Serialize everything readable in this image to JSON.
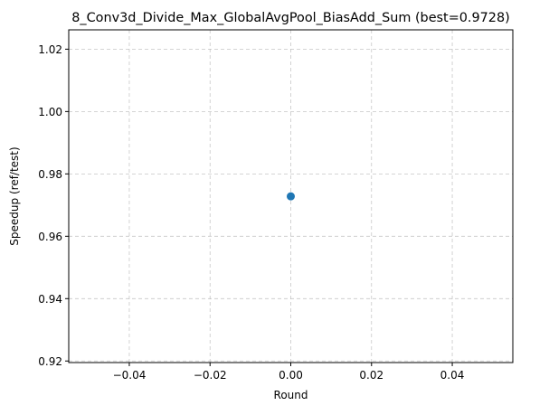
{
  "chart_data": {
    "type": "scatter",
    "title": "8_Conv3d_Divide_Max_GlobalAvgPool_BiasAdd_Sum (best=0.9728)",
    "xlabel": "Round",
    "ylabel": "Speedup (ref/test)",
    "xlim": [
      -0.055,
      0.055
    ],
    "ylim": [
      0.9195,
      1.0262
    ],
    "x_ticks": [
      -0.04,
      -0.02,
      0.0,
      0.02,
      0.04
    ],
    "x_tick_labels": [
      "−0.04",
      "−0.02",
      "0.00",
      "0.02",
      "0.04"
    ],
    "y_ticks": [
      0.92,
      0.94,
      0.96,
      0.98,
      1.0,
      1.02
    ],
    "y_tick_labels": [
      "0.92",
      "0.94",
      "0.96",
      "0.98",
      "1.00",
      "1.02"
    ],
    "grid": true,
    "series": [
      {
        "color": "#1f77b4",
        "points": [
          {
            "x": 0,
            "y": 0.9728
          }
        ]
      }
    ]
  }
}
